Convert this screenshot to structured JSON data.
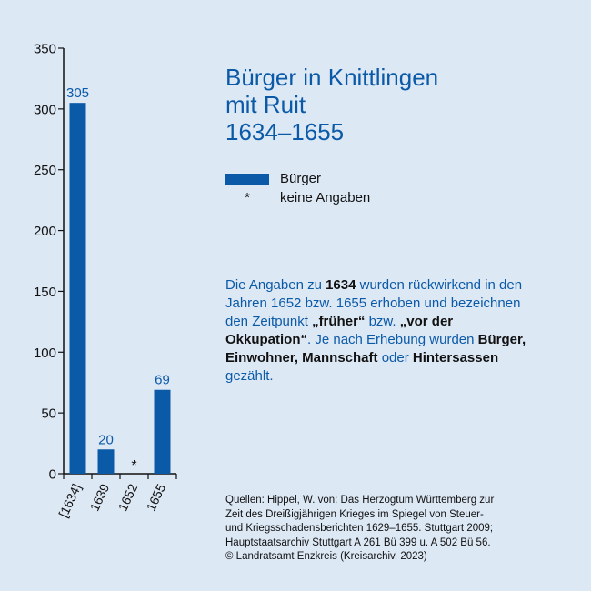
{
  "title_lines": [
    "Bürger in Knittlingen",
    "mit Ruit",
    "1634–1655"
  ],
  "legend": {
    "series_label": "Bürger",
    "missing_symbol": "*",
    "missing_label": "keine Angaben"
  },
  "description": {
    "p1": "Die Angaben zu ",
    "b1": "1634",
    "p2": " wurden rückwirkend in den Jahren 1652 bzw. 1655 erhoben und bezeichnen den Zeitpunkt ",
    "b2": "„früher“",
    "p3": " bzw. ",
    "b3": "„vor der Okkupation“",
    "p4": ". Je nach Erhebung wurden ",
    "b4": "Bürger, Einwohner, Mannschaft",
    "p5": " oder ",
    "b5": "Hintersassen",
    "p6": " gezählt."
  },
  "sources": [
    "Quellen: Hippel, W. von: Das Herzogtum Württemberg zur",
    "Zeit des Dreißigjährigen Krieges im Spiegel von Steuer-",
    "und Kriegsschadensberichten 1629–1655. Stuttgart 2009;",
    "Hauptstaatsarchiv Stuttgart A 261 Bü 399 u. A 502 Bü 56.",
    "© Landratsamt Enzkreis (Kreisarchiv, 2023)"
  ],
  "colors": {
    "bar": "#0b5aa8",
    "label": "#0b5aa8",
    "background": "#dde8f5",
    "axis": "#111111"
  },
  "chart_data": {
    "type": "bar",
    "categories": [
      "[1634]",
      "1639",
      "1652",
      "1655"
    ],
    "values": [
      305,
      20,
      null,
      69
    ],
    "labels": [
      "305",
      "20",
      "*",
      "69"
    ],
    "yticks": [
      0,
      50,
      100,
      150,
      200,
      250,
      300,
      350
    ],
    "ylim": [
      0,
      350
    ],
    "grid": false,
    "legend_position": "right"
  }
}
